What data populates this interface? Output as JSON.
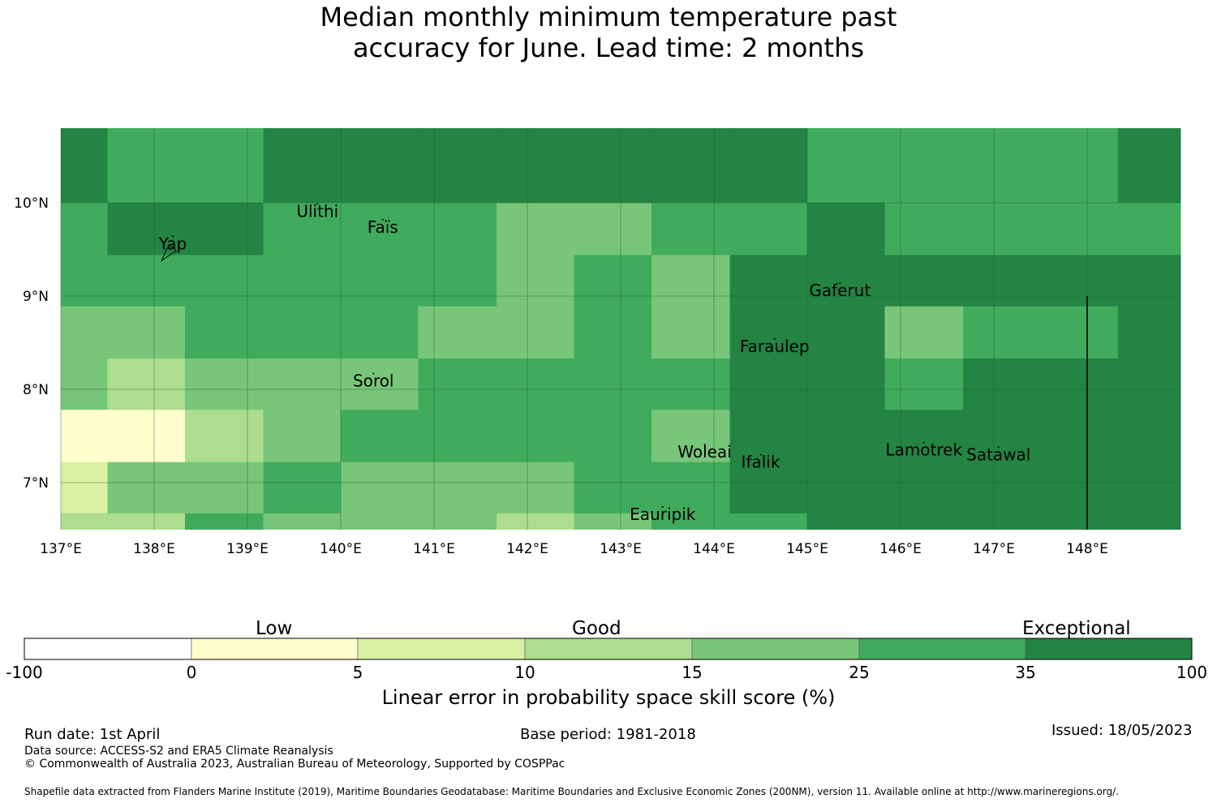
{
  "title_line1": "Median monthly minimum temperature past",
  "title_line2": "accuracy for June. Lead time: 2 months",
  "map": {
    "lon_range": [
      137,
      149
    ],
    "lat_range": [
      6.5,
      10.8
    ],
    "lon_ticks": [
      "137°E",
      "138°E",
      "139°E",
      "140°E",
      "141°E",
      "142°E",
      "143°E",
      "144°E",
      "145°E",
      "146°E",
      "147°E",
      "148°E"
    ],
    "lat_ticks": [
      "10°N",
      "9°N",
      "8°N",
      "7°N"
    ],
    "grid_cols": [
      137.0,
      137.5,
      138.33,
      139.17,
      140.0,
      140.83,
      141.67,
      142.5,
      143.33,
      144.17,
      145.0,
      145.83,
      146.67,
      147.5,
      148.33,
      149.0
    ],
    "grid_rows": [
      10.8,
      10.0,
      9.44,
      8.89,
      8.33,
      7.78,
      7.22,
      6.67,
      6.5
    ],
    "grid_categories": [
      [
        6,
        5,
        5,
        6,
        6,
        6,
        6,
        6,
        6,
        6,
        5,
        5,
        5,
        5,
        6
      ],
      [
        5,
        6,
        6,
        5,
        5,
        5,
        4,
        4,
        5,
        5,
        6,
        5,
        5,
        5,
        5
      ],
      [
        5,
        5,
        5,
        5,
        5,
        5,
        4,
        5,
        4,
        6,
        6,
        6,
        6,
        6,
        6
      ],
      [
        4,
        4,
        5,
        5,
        5,
        4,
        4,
        5,
        4,
        6,
        6,
        4,
        5,
        5,
        6
      ],
      [
        4,
        3,
        4,
        4,
        4,
        5,
        5,
        5,
        5,
        6,
        6,
        5,
        6,
        6,
        6
      ],
      [
        1,
        1,
        3,
        4,
        5,
        5,
        5,
        5,
        4,
        6,
        6,
        6,
        6,
        6,
        6
      ],
      [
        2,
        4,
        4,
        5,
        4,
        4,
        4,
        5,
        5,
        6,
        6,
        6,
        6,
        6,
        6
      ],
      [
        3,
        3,
        5,
        4,
        4,
        4,
        3,
        4,
        5,
        5,
        6,
        6,
        6,
        6,
        6
      ]
    ],
    "places": [
      {
        "name": "Ulithi",
        "lon": 139.75,
        "lat": 9.85
      },
      {
        "name": "Faïs",
        "lon": 140.45,
        "lat": 9.68
      },
      {
        "name": "Yap",
        "lon": 138.2,
        "lat": 9.5
      },
      {
        "name": "Gaferut",
        "lon": 145.35,
        "lat": 9.0
      },
      {
        "name": "Faraulep",
        "lon": 144.65,
        "lat": 8.4
      },
      {
        "name": "Sorol",
        "lon": 140.35,
        "lat": 8.03
      },
      {
        "name": "Woleai",
        "lon": 143.9,
        "lat": 7.27
      },
      {
        "name": "Ifalik",
        "lon": 144.5,
        "lat": 7.16
      },
      {
        "name": "Lamotrek",
        "lon": 146.25,
        "lat": 7.29
      },
      {
        "name": "Satawal",
        "lon": 147.05,
        "lat": 7.24
      },
      {
        "name": "Eauripik",
        "lon": 143.45,
        "lat": 6.6
      }
    ],
    "eez_boundary_lon": 148.0
  },
  "colorbar": {
    "categories_text": [
      "Low",
      "Good",
      "Exceptional"
    ],
    "ticks": [
      "-100",
      "0",
      "5",
      "10",
      "15",
      "25",
      "35",
      "100"
    ],
    "colors": [
      "#ffffff",
      "#ffffcc",
      "#d9f0a3",
      "#addd8e",
      "#78c679",
      "#41ab5d",
      "#238443"
    ],
    "title": "Linear error in probability space skill score (%)"
  },
  "footer": {
    "run_date": "Run date: 1st April",
    "base_period": "Base period: 1981-2018",
    "issued": "Issued: 18/05/2023",
    "data_source": "Data source: ACCESS-S2 and ERA5 Climate Reanalysis",
    "copyright": "© Commonwealth of Australia 2023, Australian Bureau of Meteorology, Supported by COSPPac",
    "shapefile": "Shapefile data extracted from Flanders Marine Institute (2019), Maritime Boundaries Geodatabase: Maritime Boundaries and Exclusive Economic Zones (200NM), version 11. Available online at http://www.marineregions.org/."
  }
}
